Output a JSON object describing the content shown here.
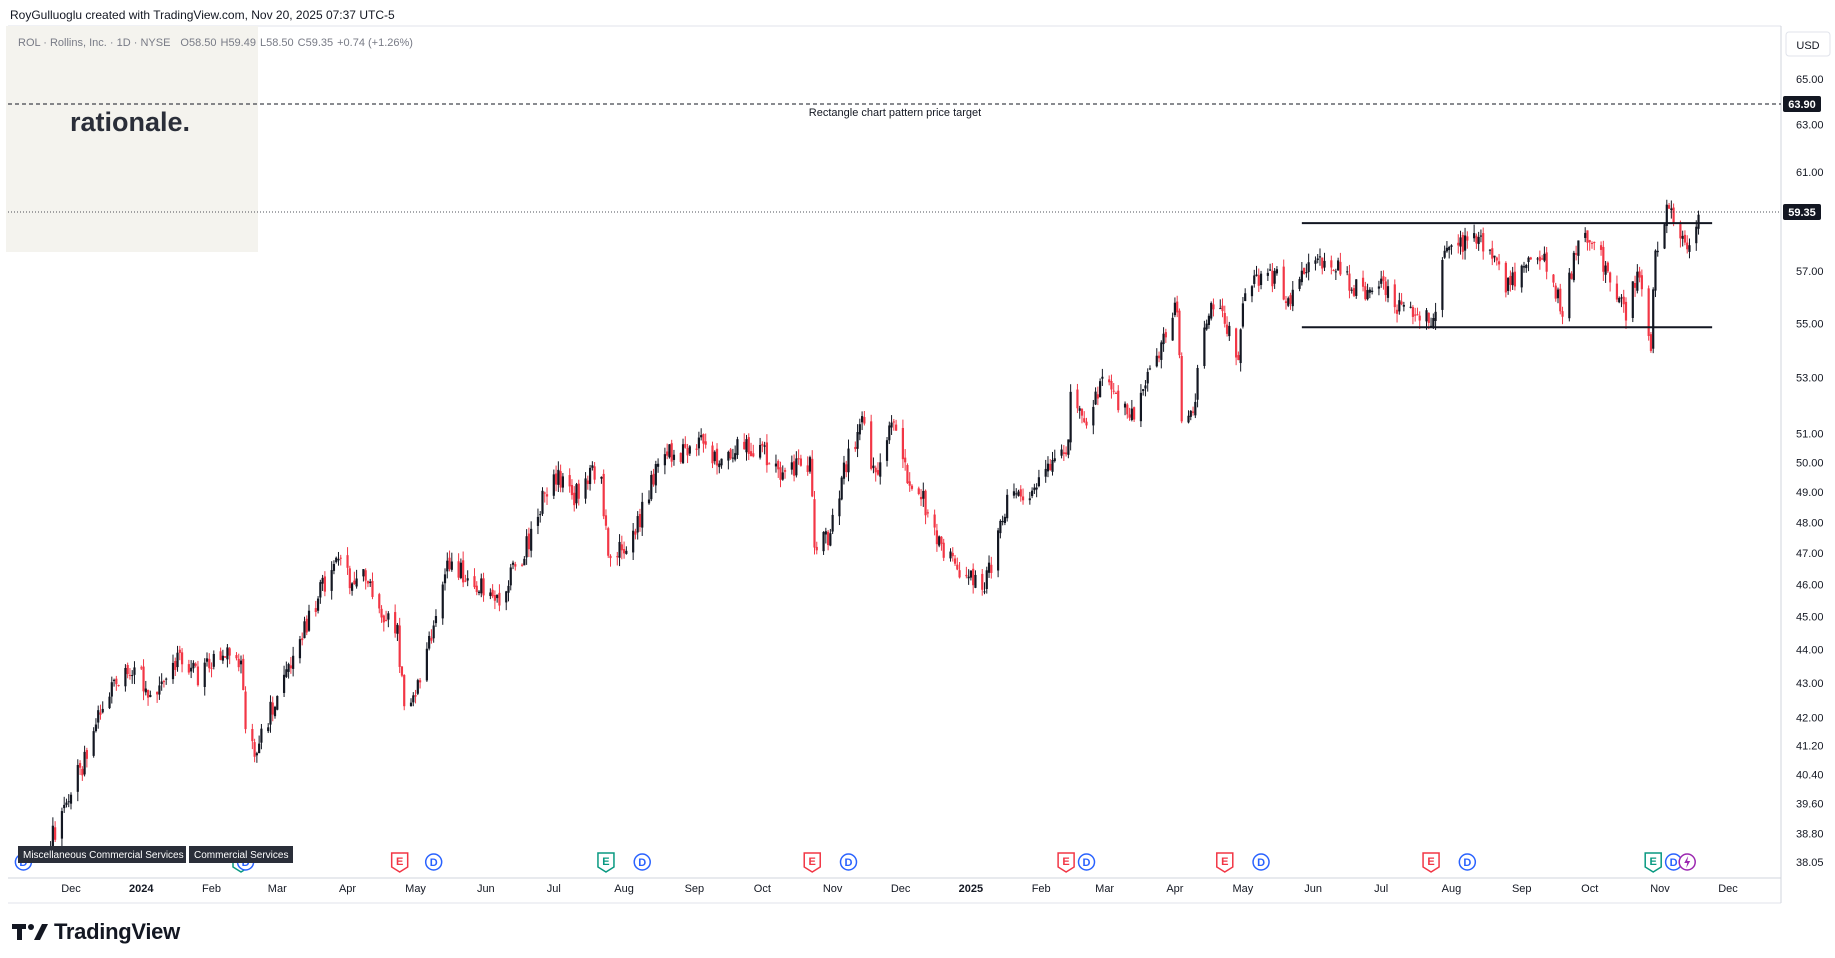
{
  "header": {
    "attribution": "RoyGulluoglu created with TradingView.com, Nov 20, 2025 07:37 UTC-5"
  },
  "legend": {
    "symbol": "ROL · Rollins, Inc. · 1D · NYSE",
    "open": "O58.50",
    "high": "H59.49",
    "low": "L58.50",
    "close": "C59.35",
    "change": "+0.74 (+1.26%)"
  },
  "watermark": {
    "brand": "rationale."
  },
  "currency": "USD",
  "footer": {
    "logo_text": "TradingView",
    "logo_icon": "tradingview-logo-icon"
  },
  "sector_tags": [
    "Miscellaneous Commercial Services",
    "Commercial Services"
  ],
  "colors": {
    "up": "#131722",
    "down": "#f23645",
    "dividend": "#2962ff",
    "earnings_neg": "#f23645",
    "earnings_pos": "#089981",
    "split": "#9c27b0",
    "last_price_bg": "#131722"
  },
  "chart_data": {
    "type": "candlestick",
    "x_axis_labels": [
      "Dec",
      "2024",
      "Feb",
      "Mar",
      "Apr",
      "May",
      "Jun",
      "Jul",
      "Aug",
      "Sep",
      "Oct",
      "Nov",
      "Dec",
      "2025",
      "Feb",
      "Mar",
      "Apr",
      "May",
      "Jun",
      "Jul",
      "Aug",
      "Sep",
      "Oct",
      "Nov",
      "Dec"
    ],
    "y_axis_ticks": [
      "65.00",
      "63.00",
      "61.00",
      "57.00",
      "55.00",
      "53.00",
      "51.00",
      "50.00",
      "49.00",
      "48.00",
      "47.00",
      "46.00",
      "45.00",
      "44.00",
      "43.00",
      "42.00",
      "41.20",
      "40.40",
      "39.60",
      "38.80",
      "38.05"
    ],
    "ylim": [
      38.05,
      66.0
    ],
    "scale": "log",
    "last_price": "59.35",
    "target_price": "63.90",
    "target_label": "Rectangle chart pattern price target",
    "rectangle_pattern": {
      "top": 58.9,
      "bottom": 54.85,
      "start": "2025-05-27",
      "end": "2025-11-24"
    },
    "price_path": [
      [
        "2023-11-22",
        38.6
      ],
      [
        "2023-12-01",
        39.9
      ],
      [
        "2023-12-08",
        41.0
      ],
      [
        "2023-12-15",
        42.3
      ],
      [
        "2023-12-22",
        43.2
      ],
      [
        "2023-12-29",
        43.6
      ],
      [
        "2024-01-05",
        42.6
      ],
      [
        "2024-01-12",
        43.4
      ],
      [
        "2024-01-19",
        43.8
      ],
      [
        "2024-01-26",
        43.2
      ],
      [
        "2024-02-02",
        43.7
      ],
      [
        "2024-02-09",
        44.0
      ],
      [
        "2024-02-14",
        43.6
      ],
      [
        "2024-02-16",
        41.5
      ],
      [
        "2024-02-20",
        41.0
      ],
      [
        "2024-02-27",
        42.2
      ],
      [
        "2024-03-05",
        43.2
      ],
      [
        "2024-03-12",
        44.4
      ],
      [
        "2024-03-19",
        45.6
      ],
      [
        "2024-03-26",
        46.8
      ],
      [
        "2024-04-02",
        46.2
      ],
      [
        "2024-04-09",
        46.4
      ],
      [
        "2024-04-16",
        45.2
      ],
      [
        "2024-04-23",
        44.6
      ],
      [
        "2024-04-26",
        42.2
      ],
      [
        "2024-05-01",
        42.5
      ],
      [
        "2024-05-08",
        44.6
      ],
      [
        "2024-05-15",
        46.6
      ],
      [
        "2024-05-22",
        46.4
      ],
      [
        "2024-05-29",
        46.0
      ],
      [
        "2024-06-05",
        45.3
      ],
      [
        "2024-06-12",
        46.3
      ],
      [
        "2024-06-19",
        47.2
      ],
      [
        "2024-06-26",
        48.8
      ],
      [
        "2024-07-03",
        49.6
      ],
      [
        "2024-07-10",
        48.9
      ],
      [
        "2024-07-17",
        49.7
      ],
      [
        "2024-07-22",
        49.2
      ],
      [
        "2024-07-25",
        46.8
      ],
      [
        "2024-08-01",
        47.2
      ],
      [
        "2024-08-08",
        48.2
      ],
      [
        "2024-08-15",
        49.6
      ],
      [
        "2024-08-22",
        50.4
      ],
      [
        "2024-08-29",
        50.2
      ],
      [
        "2024-09-05",
        50.8
      ],
      [
        "2024-09-12",
        50.0
      ],
      [
        "2024-09-19",
        50.6
      ],
      [
        "2024-09-26",
        50.5
      ],
      [
        "2024-10-03",
        50.2
      ],
      [
        "2024-10-10",
        49.6
      ],
      [
        "2024-10-17",
        49.8
      ],
      [
        "2024-10-22",
        49.9
      ],
      [
        "2024-10-24",
        47.2
      ],
      [
        "2024-10-31",
        47.6
      ],
      [
        "2024-11-07",
        50.0
      ],
      [
        "2024-11-14",
        51.3
      ],
      [
        "2024-11-21",
        49.3
      ],
      [
        "2024-11-27",
        51.4
      ],
      [
        "2024-12-04",
        49.6
      ],
      [
        "2024-12-11",
        48.8
      ],
      [
        "2024-12-18",
        47.4
      ],
      [
        "2024-12-27",
        46.4
      ],
      [
        "2025-01-06",
        45.9
      ],
      [
        "2025-01-10",
        46.6
      ],
      [
        "2025-01-17",
        48.6
      ],
      [
        "2025-01-24",
        48.9
      ],
      [
        "2025-01-31",
        49.5
      ],
      [
        "2025-02-07",
        49.9
      ],
      [
        "2025-02-12",
        50.2
      ],
      [
        "2025-02-14",
        52.1
      ],
      [
        "2025-02-21",
        51.6
      ],
      [
        "2025-02-28",
        53.0
      ],
      [
        "2025-03-07",
        51.9
      ],
      [
        "2025-03-14",
        51.5
      ],
      [
        "2025-03-21",
        53.2
      ],
      [
        "2025-03-28",
        54.4
      ],
      [
        "2025-04-02",
        55.6
      ],
      [
        "2025-04-04",
        51.8
      ],
      [
        "2025-04-09",
        51.5
      ],
      [
        "2025-04-14",
        55.2
      ],
      [
        "2025-04-21",
        55.6
      ],
      [
        "2025-04-25",
        54.6
      ],
      [
        "2025-04-29",
        53.6
      ],
      [
        "2025-05-02",
        56.2
      ],
      [
        "2025-05-09",
        56.6
      ],
      [
        "2025-05-16",
        56.9
      ],
      [
        "2025-05-20",
        55.6
      ],
      [
        "2025-05-27",
        56.7
      ],
      [
        "2025-06-03",
        57.6
      ],
      [
        "2025-06-10",
        57.3
      ],
      [
        "2025-06-17",
        56.6
      ],
      [
        "2025-06-24",
        56.1
      ],
      [
        "2025-07-01",
        56.3
      ],
      [
        "2025-07-08",
        55.6
      ],
      [
        "2025-07-15",
        55.4
      ],
      [
        "2025-07-22",
        55.3
      ],
      [
        "2025-07-24",
        55.2
      ],
      [
        "2025-07-28",
        57.4
      ],
      [
        "2025-08-04",
        58.0
      ],
      [
        "2025-08-11",
        58.4
      ],
      [
        "2025-08-18",
        57.4
      ],
      [
        "2025-08-25",
        56.6
      ],
      [
        "2025-09-01",
        56.8
      ],
      [
        "2025-09-08",
        57.8
      ],
      [
        "2025-09-15",
        56.6
      ],
      [
        "2025-09-19",
        55.3
      ],
      [
        "2025-09-26",
        58.3
      ],
      [
        "2025-10-03",
        58.0
      ],
      [
        "2025-10-10",
        56.6
      ],
      [
        "2025-10-17",
        55.4
      ],
      [
        "2025-10-22",
        56.8
      ],
      [
        "2025-10-28",
        54.2
      ],
      [
        "2025-10-30",
        57.6
      ],
      [
        "2025-11-04",
        59.7
      ],
      [
        "2025-11-10",
        58.6
      ],
      [
        "2025-11-14",
        57.8
      ],
      [
        "2025-11-19",
        59.35
      ]
    ],
    "events": [
      {
        "type": "D",
        "date": "2023-11-10"
      },
      {
        "type": "E",
        "date": "2024-02-14"
      },
      {
        "type": "D",
        "date": "2024-02-16"
      },
      {
        "type": "E",
        "date": "2024-04-24"
      },
      {
        "type": "D",
        "date": "2024-05-09"
      },
      {
        "type": "E",
        "date": "2024-07-24"
      },
      {
        "type": "D",
        "date": "2024-08-09"
      },
      {
        "type": "E",
        "date": "2024-10-23"
      },
      {
        "type": "D",
        "date": "2024-11-08"
      },
      {
        "type": "E",
        "date": "2025-02-12"
      },
      {
        "type": "D",
        "date": "2025-02-21"
      },
      {
        "type": "E",
        "date": "2025-04-23"
      },
      {
        "type": "D",
        "date": "2025-05-09"
      },
      {
        "type": "E",
        "date": "2025-07-23"
      },
      {
        "type": "D",
        "date": "2025-08-08"
      },
      {
        "type": "E",
        "date": "2025-10-29"
      },
      {
        "type": "D",
        "date": "2025-11-07"
      },
      {
        "type": "S",
        "date": "2025-11-13"
      }
    ]
  }
}
